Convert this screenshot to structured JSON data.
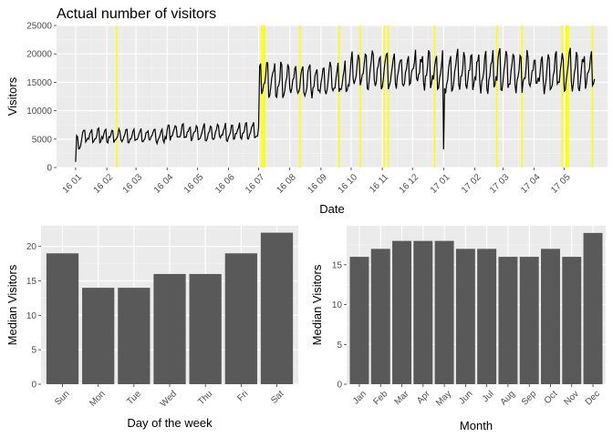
{
  "chart_data": [
    {
      "type": "line",
      "title": "Actual number of visitors",
      "xlabel": "Date",
      "ylabel": "Visitors",
      "ylim": [
        0,
        25000
      ],
      "yticks": [
        0,
        5000,
        10000,
        15000,
        20000,
        25000
      ],
      "x_tick_labels": [
        "16 01",
        "16 02",
        "16 03",
        "16 04",
        "16 05",
        "16 06",
        "16 07",
        "16 08",
        "16 09",
        "16 10",
        "16 11",
        "16 12",
        "17 01",
        "17 02",
        "17 03",
        "17 04",
        "17 05"
      ],
      "x_start": "2016-01-01",
      "x_end": "2017-05-31",
      "line_color": "#000000",
      "highlight_color": "#ffff00",
      "holiday_dates": [
        "2016-02-11",
        "2016-07-04",
        "2016-07-06",
        "2016-07-07",
        "2016-08-11",
        "2016-09-19",
        "2016-10-10",
        "2016-11-03",
        "2016-11-07",
        "2016-12-23",
        "2017-02-23",
        "2017-03-20",
        "2017-04-29",
        "2017-05-03",
        "2017-05-04",
        "2017-05-05",
        "2017-05-29"
      ],
      "segments": [
        {
          "start": "2016-01-01",
          "end": "2016-01-06",
          "base": 3200,
          "amp": 2500
        },
        {
          "start": "2016-01-07",
          "end": "2016-03-31",
          "base": 4400,
          "amp": 2200
        },
        {
          "start": "2016-04-01",
          "end": "2016-07-01",
          "base": 4800,
          "amp": 2700
        },
        {
          "start": "2016-07-02",
          "end": "2016-09-30",
          "base": 12500,
          "amp": 5500
        },
        {
          "start": "2016-10-01",
          "end": "2016-12-31",
          "base": 14000,
          "amp": 6000
        },
        {
          "start": "2017-01-01",
          "end": "2017-01-01",
          "base": 3200,
          "amp": 0
        },
        {
          "start": "2017-01-02",
          "end": "2017-05-31",
          "base": 13500,
          "amp": 6500
        }
      ]
    },
    {
      "type": "bar",
      "xlabel": "Day of the week",
      "ylabel": "Median Visitors",
      "ylim": [
        0,
        23
      ],
      "yticks": [
        0,
        5,
        10,
        15,
        20
      ],
      "categories": [
        "Sun",
        "Mon",
        "Tue",
        "Wed",
        "Thu",
        "Fri",
        "Sat"
      ],
      "values": [
        19,
        14,
        14,
        16,
        16,
        19,
        22
      ],
      "bar_color": "#595959"
    },
    {
      "type": "bar",
      "xlabel": "Month",
      "ylabel": "Median Visitors",
      "ylim": [
        0,
        19.9
      ],
      "yticks": [
        0,
        5,
        10,
        15
      ],
      "categories": [
        "Jan",
        "Feb",
        "Mar",
        "Apr",
        "May",
        "Jun",
        "Jul",
        "Aug",
        "Sep",
        "Oct",
        "Nov",
        "Dec"
      ],
      "values": [
        16,
        17,
        18,
        18,
        18,
        17,
        17,
        16,
        16,
        17,
        16,
        19
      ],
      "bar_color": "#595959"
    }
  ]
}
